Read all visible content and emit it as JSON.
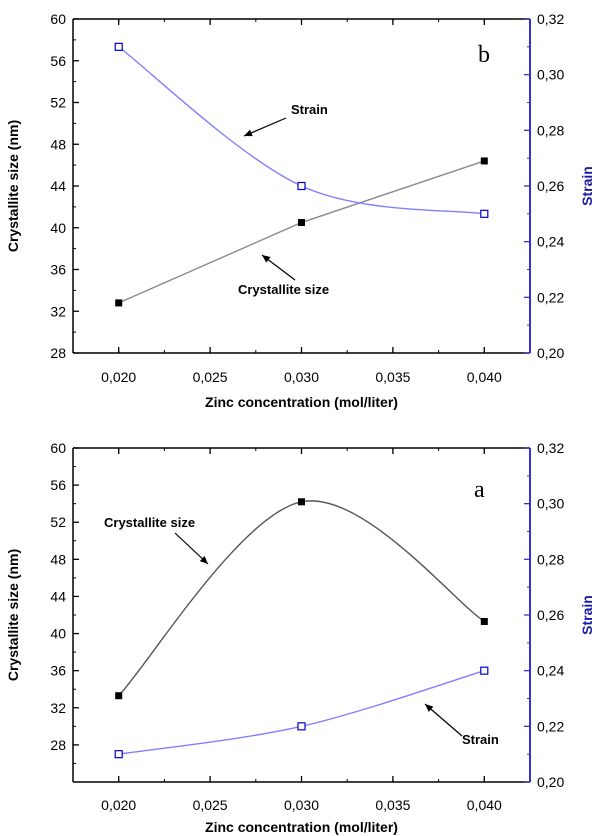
{
  "chart_data": [
    {
      "type": "line",
      "panel_label": "b",
      "x": [
        0.02,
        0.03,
        0.04
      ],
      "xlabel": "Zinc concentration (mol/liter)",
      "xticks": [
        "0,020",
        "0,025",
        "0,030",
        "0,035",
        "0,040"
      ],
      "xlim": [
        0.0175,
        0.0425
      ],
      "ylabel": "Crystallite size (nm)",
      "ylim": [
        28,
        60
      ],
      "yticks": [
        "28",
        "32",
        "36",
        "40",
        "44",
        "48",
        "52",
        "56",
        "60"
      ],
      "y2label": "Strain",
      "y2lim": [
        0.2,
        0.32
      ],
      "y2ticks": [
        "0,20",
        "0,22",
        "0,24",
        "0,26",
        "0,28",
        "0,30",
        "0,32"
      ],
      "series": [
        {
          "name": "Crystallite size",
          "axis": "left",
          "marker": "filled-square",
          "color": "#000000",
          "line_color": "#8a8a8a",
          "values": [
            32.8,
            40.5,
            46.4
          ]
        },
        {
          "name": "Strain",
          "axis": "right",
          "marker": "open-square",
          "color": "#0000cc",
          "line_color": "#8080ff",
          "values": [
            0.31,
            0.26,
            0.25
          ]
        }
      ],
      "annotations": [
        {
          "text": "Strain",
          "points_to": "Strain"
        },
        {
          "text": "Crystallite size",
          "points_to": "Crystallite size"
        }
      ]
    },
    {
      "type": "line",
      "panel_label": "a",
      "x": [
        0.02,
        0.03,
        0.04
      ],
      "xlabel": "Zinc concentration (mol/liter)",
      "xticks": [
        "0,020",
        "0,025",
        "0,030",
        "0,035",
        "0,040"
      ],
      "xlim": [
        0.0175,
        0.0425
      ],
      "ylabel": "Crystallite size (nm)",
      "ylim": [
        24,
        60
      ],
      "yticks": [
        "28",
        "32",
        "36",
        "40",
        "44",
        "48",
        "52",
        "56",
        "60"
      ],
      "y2label": "Strain",
      "y2lim": [
        0.2,
        0.32
      ],
      "y2ticks": [
        "0,20",
        "0,22",
        "0,24",
        "0,26",
        "0,28",
        "0,30",
        "0,32"
      ],
      "series": [
        {
          "name": "Crystallite size",
          "axis": "left",
          "marker": "filled-square",
          "color": "#000000",
          "line_color": "#555555",
          "values": [
            33.3,
            54.2,
            41.3
          ]
        },
        {
          "name": "Strain",
          "axis": "right",
          "marker": "open-square",
          "color": "#0000cc",
          "line_color": "#8080ff",
          "values": [
            0.21,
            0.22,
            0.24
          ]
        }
      ],
      "annotations": [
        {
          "text": "Crystallite size",
          "points_to": "Crystallite size"
        },
        {
          "text": "Strain",
          "points_to": "Strain"
        }
      ]
    }
  ]
}
